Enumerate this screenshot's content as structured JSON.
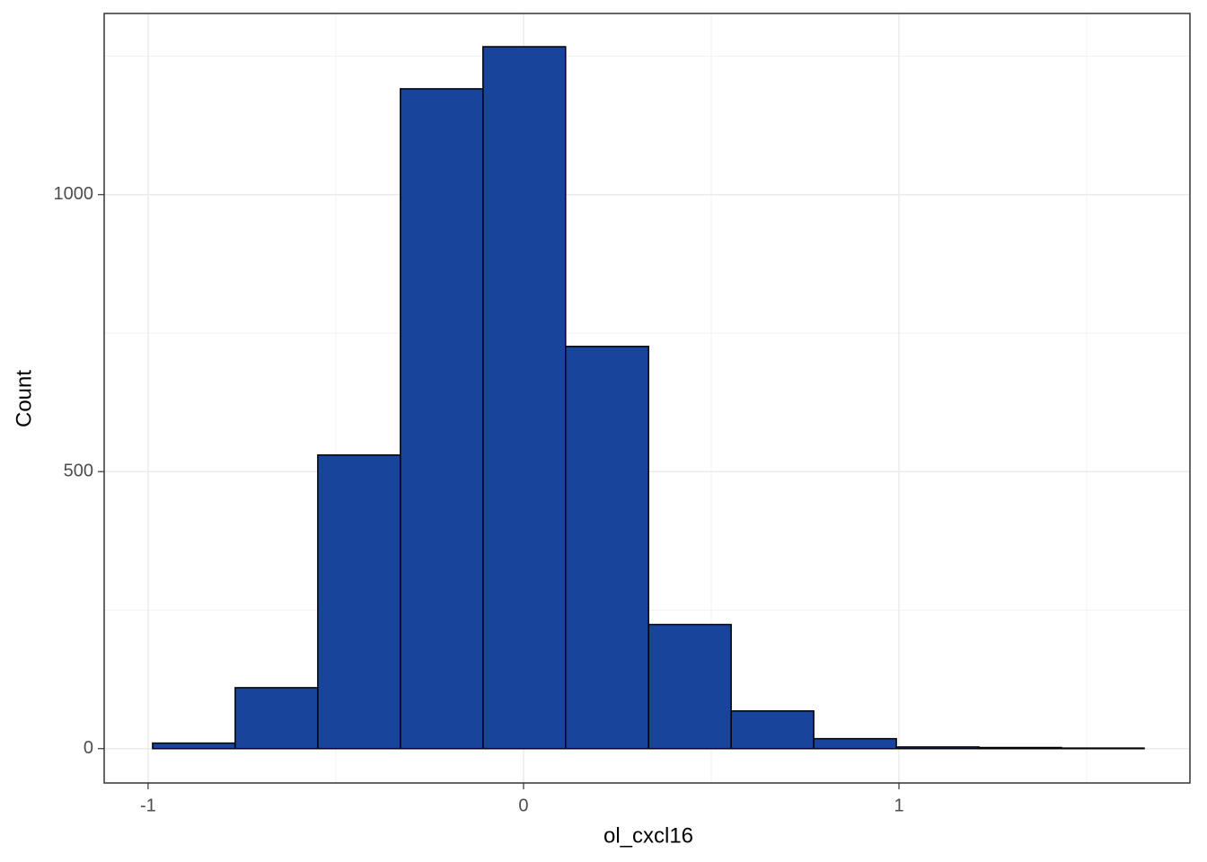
{
  "chart_data": {
    "type": "histogram",
    "x_label": "ol_cxcl16",
    "y_label": "Count",
    "bins": [
      -0.988,
      -0.768,
      -0.548,
      -0.328,
      -0.108,
      0.112,
      0.333,
      0.553,
      0.773,
      0.993,
      1.213,
      1.433,
      1.653
    ],
    "counts": [
      10,
      110,
      530,
      1191,
      1267,
      726,
      224,
      68,
      18,
      3,
      2,
      1
    ],
    "color": "#19449b",
    "edge_color": "#000000",
    "xlim": [
      -1.117,
      1.775
    ],
    "ylim": [
      -62,
      1327
    ],
    "xticks": [
      -1,
      0,
      1
    ],
    "yticks": [
      0,
      500,
      1000
    ],
    "grid": true
  }
}
